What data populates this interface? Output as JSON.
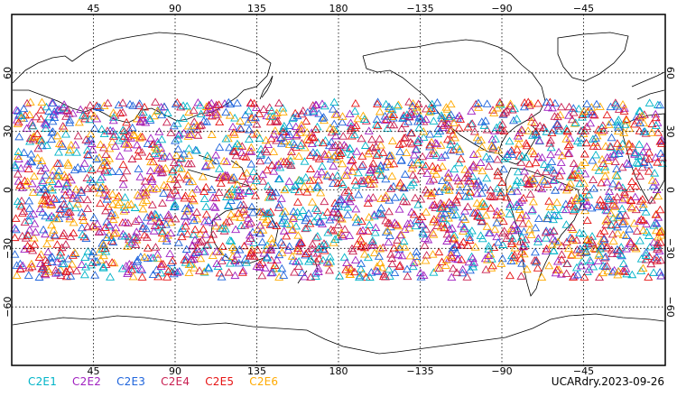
{
  "map": {
    "lon_center": 180,
    "lat_range": [
      -90,
      90
    ],
    "x_ticks": [
      {
        "lon": 45,
        "label": "45"
      },
      {
        "lon": 90,
        "label": "90"
      },
      {
        "lon": 135,
        "label": "135"
      },
      {
        "lon": 180,
        "label": "180"
      },
      {
        "lon": 225,
        "label": "−135"
      },
      {
        "lon": 270,
        "label": "−90"
      },
      {
        "lon": 315,
        "label": "−45"
      }
    ],
    "y_ticks": [
      {
        "lat": 60,
        "label": "60"
      },
      {
        "lat": 30,
        "label": "30"
      },
      {
        "lat": 0,
        "label": "0"
      },
      {
        "lat": -30,
        "label": "−30"
      },
      {
        "lat": -60,
        "label": "−60"
      }
    ],
    "grid": "dotted",
    "marker": "open-triangle",
    "observation_lat_band": [
      -45,
      45
    ]
  },
  "legend": [
    {
      "label": "C2E1",
      "color": "#00b4c8"
    },
    {
      "label": "C2E2",
      "color": "#a020c0"
    },
    {
      "label": "C2E3",
      "color": "#1e64dc"
    },
    {
      "label": "C2E4",
      "color": "#c81e50"
    },
    {
      "label": "C2E5",
      "color": "#e61414"
    },
    {
      "label": "C2E6",
      "color": "#ffaa00"
    }
  ],
  "caption": "UCARdry.2023-09-26"
}
